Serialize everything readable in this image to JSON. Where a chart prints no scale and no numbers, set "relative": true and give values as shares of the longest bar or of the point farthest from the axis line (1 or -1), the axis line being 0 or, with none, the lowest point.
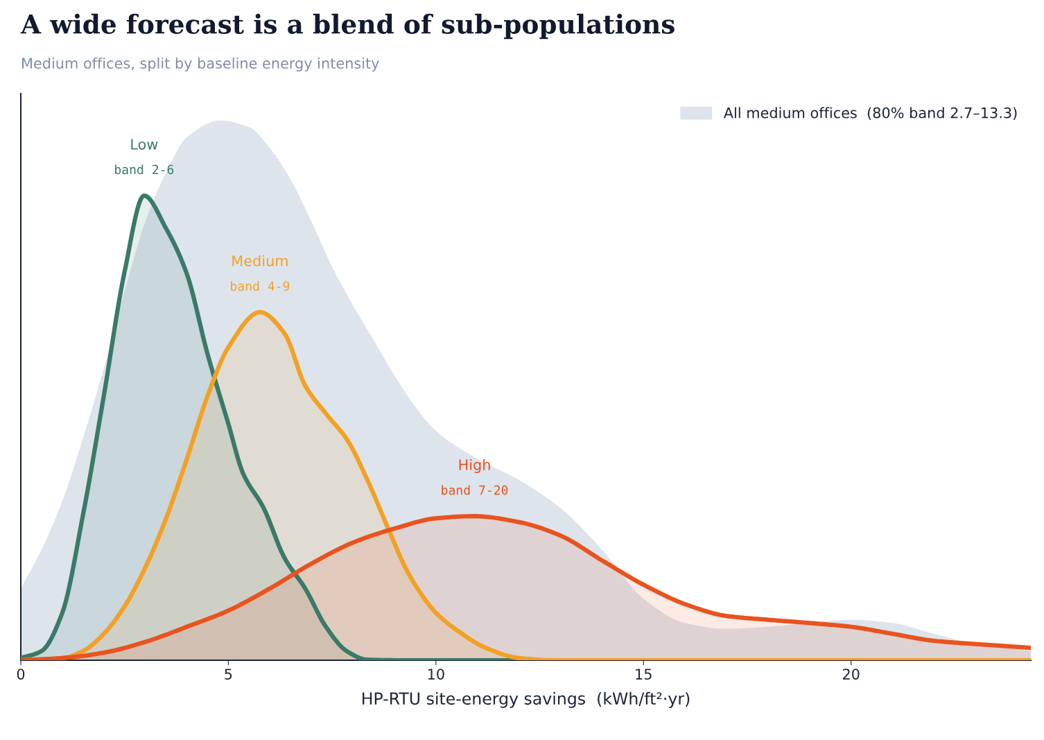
{
  "chart_data": {
    "type": "area",
    "relative": true,
    "title": "A wide forecast is a blend of sub-populations",
    "subtitle": "Medium offices, split by baseline energy intensity",
    "xlabel": "HP-RTU site-energy savings  (kWh/ft²·yr)",
    "xlim": [
      0,
      24.33
    ],
    "xticks": [
      0,
      5,
      10,
      15,
      20
    ],
    "grid": false,
    "legend": "top right",
    "series": [
      {
        "name": "All medium offices  (80% band 2.7–13.3)",
        "color": "#dee4ec",
        "x": [
          0,
          0.5,
          1,
          1.5,
          2,
          2.5,
          3,
          3.5,
          4,
          4.8,
          5.5,
          6,
          6.5,
          7,
          7.5,
          8,
          8.5,
          9,
          9.5,
          10,
          11,
          12,
          13,
          14,
          15,
          16,
          17,
          18,
          19,
          20,
          21,
          22,
          23,
          24.33
        ],
        "values": [
          0.133,
          0.205,
          0.295,
          0.412,
          0.541,
          0.684,
          0.813,
          0.904,
          0.969,
          1,
          0.988,
          0.949,
          0.891,
          0.813,
          0.729,
          0.658,
          0.593,
          0.528,
          0.47,
          0.425,
          0.373,
          0.334,
          0.282,
          0.205,
          0.114,
          0.069,
          0.058,
          0.062,
          0.069,
          0.075,
          0.069,
          0.049,
          0.03,
          0.017
        ]
      },
      {
        "type": "line",
        "name": "Low",
        "color": "#3a7a68",
        "x": [
          0,
          0.5,
          1,
          1.5,
          2,
          2.5,
          2.97,
          3.5,
          4,
          4.5,
          5,
          5.35,
          5.85,
          6.35,
          6.85,
          7.35,
          7.85,
          8.35,
          9,
          24.33
        ],
        "values": [
          0.004,
          0.017,
          0.088,
          0.27,
          0.49,
          0.72,
          0.861,
          0.8,
          0.716,
          0.567,
          0.438,
          0.347,
          0.282,
          0.19,
          0.133,
          0.062,
          0.017,
          0.001,
          0,
          0
        ]
      },
      {
        "type": "line",
        "name": "Medium",
        "color": "#f2a124",
        "x": [
          0,
          1,
          1.5,
          2,
          2.5,
          3,
          3.5,
          4,
          4.5,
          5,
          5.76,
          6.35,
          6.85,
          7.35,
          7.85,
          8.35,
          8.85,
          9.35,
          10,
          10.5,
          11.2,
          12,
          12.85,
          24.33
        ],
        "values": [
          0,
          0.004,
          0.017,
          0.049,
          0.1,
          0.172,
          0.263,
          0.373,
          0.49,
          0.58,
          0.645,
          0.606,
          0.509,
          0.457,
          0.41,
          0.334,
          0.244,
          0.159,
          0.088,
          0.056,
          0.023,
          0.004,
          0,
          0
        ]
      },
      {
        "type": "line",
        "name": "High",
        "color": "#e8531f",
        "x": [
          0,
          1,
          2,
          3,
          4,
          5,
          6,
          7,
          8,
          9,
          10,
          10.93,
          12,
          13,
          14,
          15,
          16,
          17,
          18,
          19,
          20,
          21,
          22,
          23,
          24.33
        ],
        "values": [
          0,
          0.004,
          0.014,
          0.034,
          0.062,
          0.092,
          0.133,
          0.179,
          0.218,
          0.244,
          0.263,
          0.267,
          0.256,
          0.231,
          0.185,
          0.14,
          0.104,
          0.082,
          0.075,
          0.069,
          0.062,
          0.049,
          0.036,
          0.03,
          0.023
        ]
      }
    ],
    "annotations": [
      "band 2-6",
      "band 4-9",
      "band 7-20"
    ]
  }
}
